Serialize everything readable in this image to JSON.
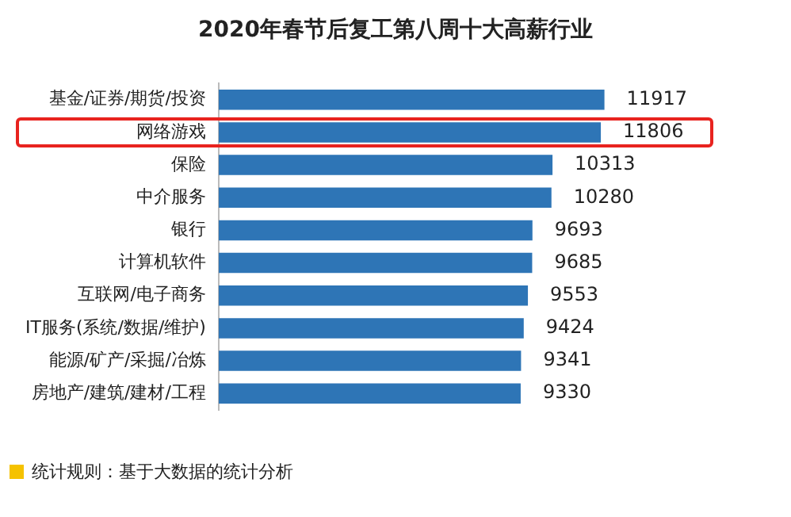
{
  "chart_data": {
    "type": "bar",
    "orientation": "horizontal",
    "title": "2020年春节后复工第八周十大高薪行业",
    "categories": [
      "基金/证券/期货/投资",
      "网络游戏",
      "保险",
      "中介服务",
      "银行",
      "计算机软件",
      "互联网/电子商务",
      "IT服务(系统/数据/维护)",
      "能源/矿产/采掘/冶炼",
      "房地产/建筑/建材/工程"
    ],
    "values": [
      11917,
      11806,
      10313,
      10280,
      9693,
      9685,
      9553,
      9424,
      9341,
      9330
    ],
    "color": "#2e75b6",
    "data_labels": true,
    "grid": false,
    "legend": false,
    "annotations": [
      "统计规则：基于大数据的统计分析"
    ]
  }
}
